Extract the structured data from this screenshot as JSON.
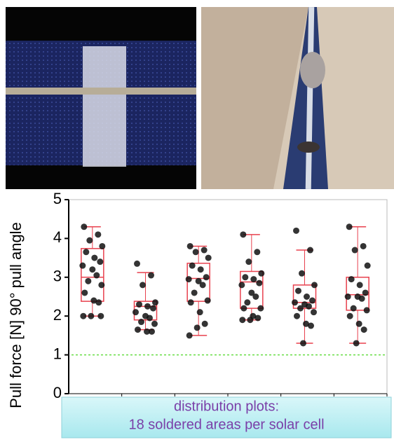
{
  "chart_data": {
    "type": "box",
    "y_label": "Pull force [N] 90° pull angle",
    "caption": [
      "distribution plots:",
      "18 soldered areas per solar cell"
    ],
    "ylim": [
      0,
      5
    ],
    "yticks": [
      0,
      1,
      2,
      3,
      4,
      5
    ],
    "reference_line": 1,
    "reference_color": "#66dd44",
    "box_color": "#e8414e",
    "point_color": "#111111",
    "categories": [
      null,
      null,
      null,
      null,
      null,
      null
    ],
    "boxes": [
      {
        "min": 2.0,
        "q1": 2.38,
        "median": 3.0,
        "q3": 3.74,
        "max": 4.3,
        "points": [
          4.3,
          4.1,
          3.95,
          3.8,
          3.65,
          3.5,
          3.4,
          3.3,
          3.2,
          3.05,
          2.9,
          2.8,
          2.6,
          2.4,
          2.35,
          2.0,
          2.0,
          2.0
        ]
      },
      {
        "min": 1.65,
        "q1": 1.9,
        "median": 2.25,
        "q3": 2.38,
        "max": 3.12,
        "points": [
          3.35,
          3.05,
          2.8,
          2.35,
          2.3,
          2.25,
          2.2,
          2.1,
          2.0,
          1.95,
          1.85,
          1.8,
          1.65,
          1.6,
          1.6
        ]
      },
      {
        "min": 1.5,
        "q1": 2.38,
        "median": 2.97,
        "q3": 3.36,
        "max": 3.8,
        "points": [
          3.8,
          3.7,
          3.65,
          3.5,
          3.3,
          3.2,
          3.0,
          2.95,
          2.9,
          2.8,
          2.6,
          2.4,
          2.35,
          2.1,
          1.8,
          1.7,
          1.5
        ]
      },
      {
        "min": 1.9,
        "q1": 2.2,
        "median": 2.88,
        "q3": 3.15,
        "max": 4.1,
        "points": [
          4.1,
          3.65,
          3.4,
          3.1,
          3.0,
          2.95,
          2.85,
          2.8,
          2.6,
          2.5,
          2.35,
          2.2,
          2.2,
          2.0,
          1.95,
          1.9,
          1.9
        ]
      },
      {
        "min": 1.3,
        "q1": 2.2,
        "median": 2.35,
        "q3": 2.8,
        "max": 3.7,
        "points": [
          4.2,
          3.7,
          3.1,
          2.8,
          2.65,
          2.5,
          2.4,
          2.35,
          2.3,
          2.25,
          2.2,
          2.1,
          2.0,
          1.8,
          1.75,
          1.3
        ]
      },
      {
        "min": 1.3,
        "q1": 2.15,
        "median": 2.55,
        "q3": 3.0,
        "max": 4.3,
        "points": [
          4.3,
          3.8,
          3.7,
          3.3,
          2.95,
          2.8,
          2.6,
          2.5,
          2.5,
          2.45,
          2.2,
          2.15,
          2.0,
          1.8,
          1.65,
          1.3
        ]
      }
    ]
  }
}
